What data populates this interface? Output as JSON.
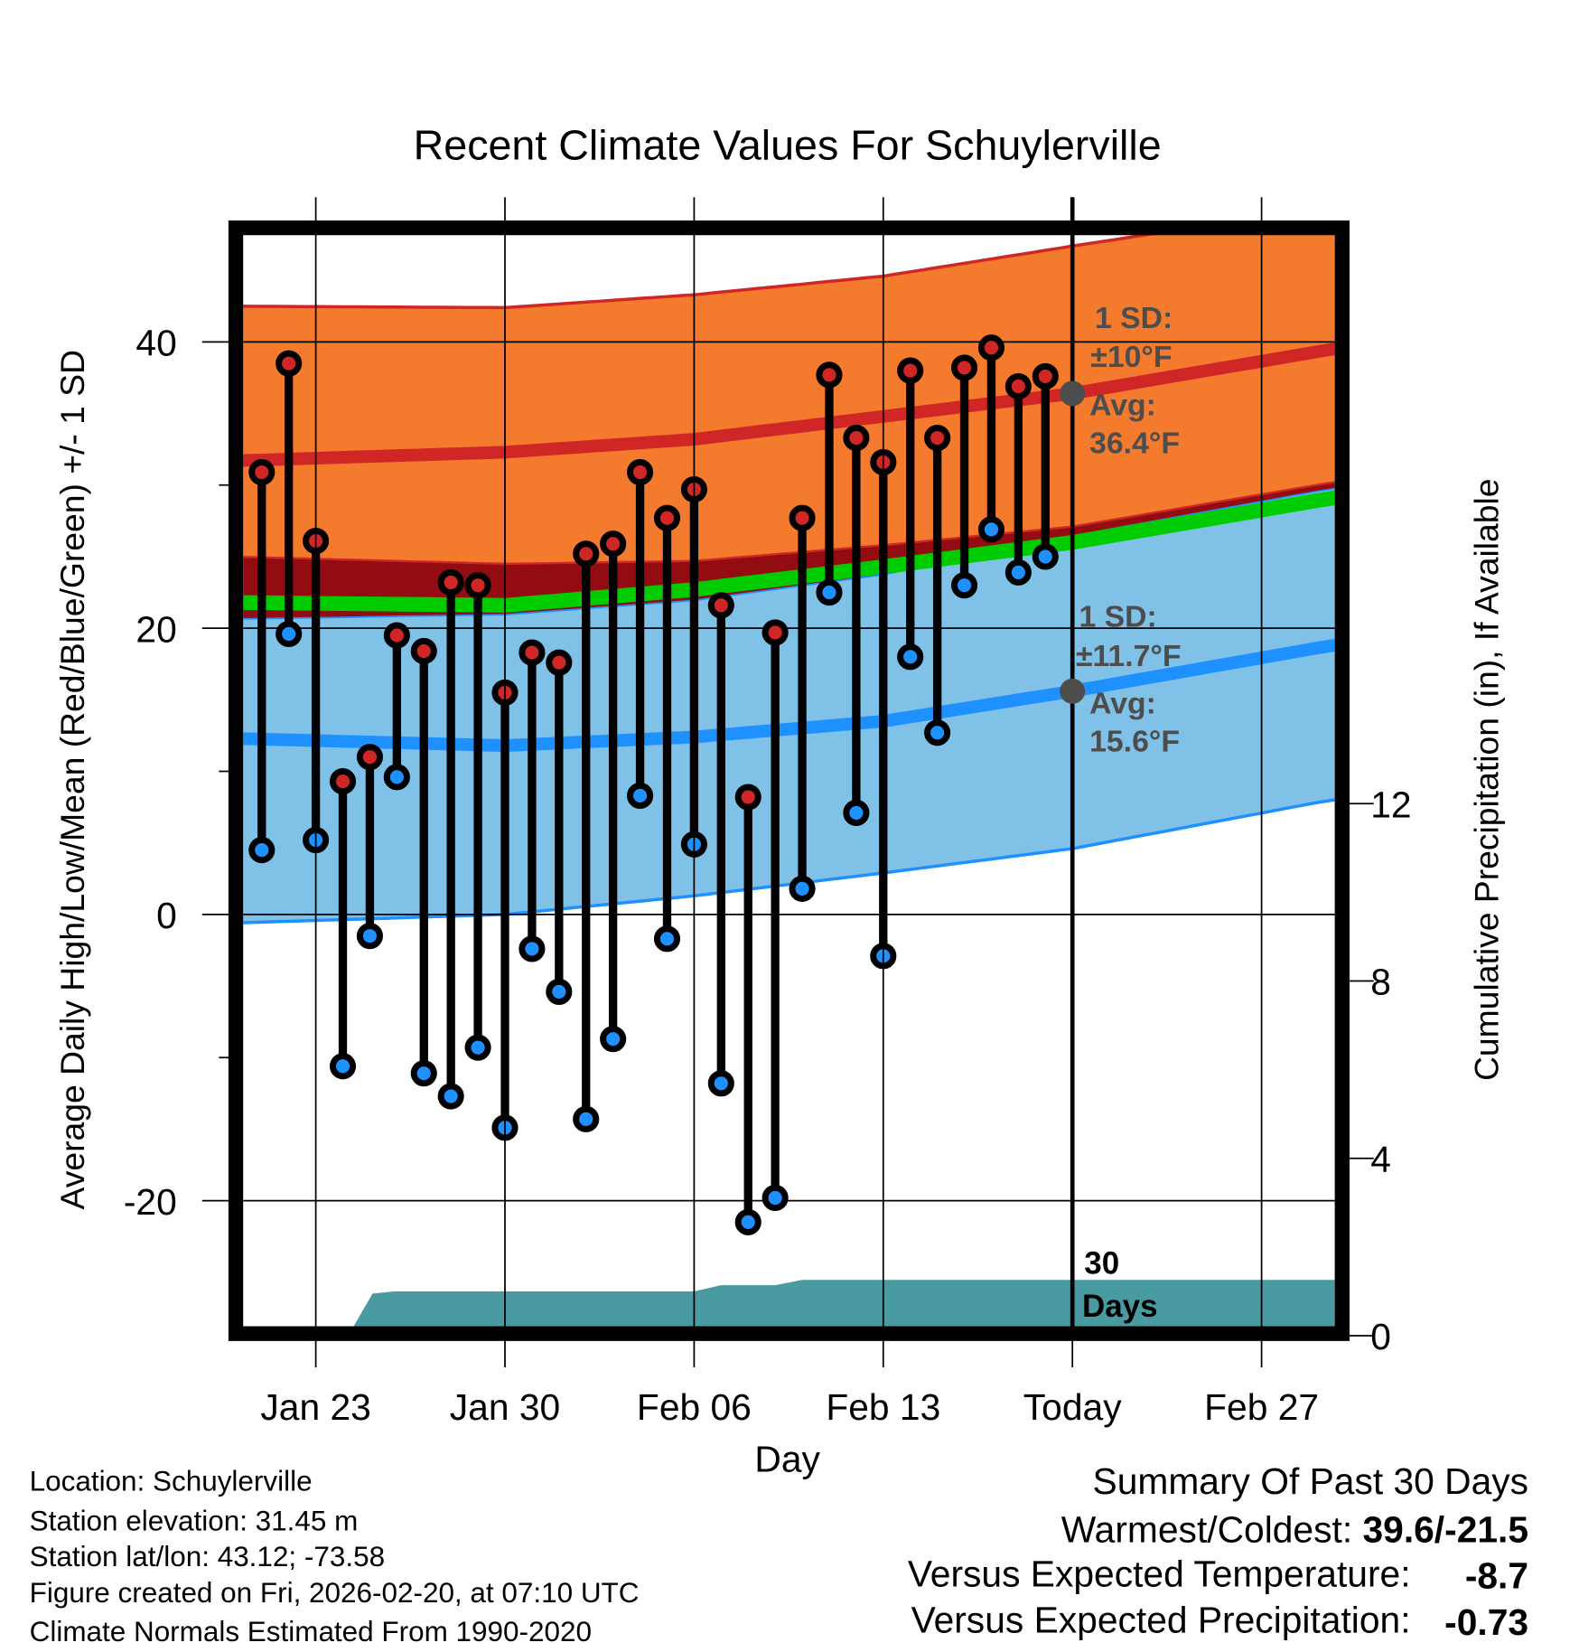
{
  "chart_data": {
    "type": "line",
    "title": "Recent Climate Values For Schuylerville",
    "xlabel": "Day",
    "ylabel": "Average Daily High/Low/Mean (Red/Blue/Green) +/- 1 SD",
    "y2label": "Cumulative Precipitation (in), If Available",
    "ylim": [
      -28.8,
      47.5
    ],
    "y2lim": [
      0,
      24
    ],
    "x_origin": "Jan 20",
    "x_ticks": [
      {
        "day": 3,
        "label": "Jan 23"
      },
      {
        "day": 10,
        "label": "Jan 30"
      },
      {
        "day": 17,
        "label": "Feb 06"
      },
      {
        "day": 24,
        "label": "Feb 13"
      },
      {
        "day": 31,
        "label": "Today"
      },
      {
        "day": 38,
        "label": "Feb 27"
      }
    ],
    "y_ticks": [
      {
        "v": 40,
        "label": "40"
      },
      {
        "v": 20,
        "label": "20"
      },
      {
        "v": 0,
        "label": "0"
      },
      {
        "v": -20,
        "label": "-20"
      }
    ],
    "y_minor_ticks": [
      30,
      10,
      -10
    ],
    "y2_ticks": [
      {
        "v": 0,
        "label": "0"
      },
      {
        "v": 4,
        "label": "4"
      },
      {
        "v": 8,
        "label": "8"
      },
      {
        "v": 12,
        "label": "12"
      }
    ],
    "today_day": 31,
    "observed": {
      "days": [
        1,
        2,
        3,
        4,
        5,
        6,
        7,
        8,
        9,
        10,
        11,
        12,
        13,
        14,
        15,
        16,
        17,
        18,
        19,
        20,
        21,
        22,
        23,
        24,
        25,
        26,
        27,
        28,
        29,
        30
      ],
      "highs": [
        30.9,
        38.5,
        26.1,
        9.3,
        11.0,
        19.5,
        18.4,
        23.2,
        23.0,
        15.5,
        18.3,
        17.6,
        25.2,
        25.9,
        30.9,
        27.7,
        29.7,
        21.6,
        8.2,
        19.7,
        27.7,
        37.7,
        33.3,
        31.6,
        38.0,
        33.3,
        38.2,
        39.6,
        36.9,
        37.6
      ],
      "lows": [
        4.5,
        19.6,
        5.2,
        -10.6,
        -1.5,
        9.6,
        -11.1,
        -12.7,
        -9.3,
        -14.9,
        -2.4,
        -5.4,
        -14.3,
        -8.7,
        8.3,
        -1.7,
        4.9,
        -11.8,
        -21.5,
        -19.8,
        1.8,
        22.5,
        7.1,
        -2.9,
        18.0,
        12.7,
        23.0,
        26.9,
        23.9,
        25.0
      ]
    },
    "normals": {
      "days": [
        0,
        10,
        17,
        24,
        31,
        40,
        41
      ],
      "high_avg": [
        31.7,
        32.3,
        33.2,
        34.8,
        36.4,
        39.3,
        39.6
      ],
      "high_upper": [
        42.5,
        42.4,
        43.3,
        44.6,
        46.7,
        49.3,
        49.6
      ],
      "high_lower": [
        25.0,
        24.5,
        24.7,
        25.8,
        27.1,
        30.0,
        30.3
      ],
      "mean": [
        21.8,
        21.6,
        22.7,
        24.3,
        26.0,
        28.9,
        29.2
      ],
      "low_avg": [
        12.3,
        11.8,
        12.4,
        13.5,
        15.6,
        18.6,
        18.9
      ],
      "low_upper": [
        20.7,
        21.0,
        22.0,
        23.8,
        26.5,
        29.6,
        29.9
      ],
      "low_lower": [
        -0.6,
        0.0,
        1.3,
        2.9,
        4.6,
        7.8,
        8.1
      ]
    },
    "precip_cumulative": {
      "days": [
        0,
        4.2,
        5.1,
        5.9,
        17,
        18,
        20,
        21,
        41
      ],
      "values": [
        0,
        0,
        0.95,
        1.0,
        1.0,
        1.14,
        1.14,
        1.26,
        1.26
      ]
    },
    "annotations": {
      "high_sd_label": "1 SD:",
      "high_sd_value": "±10°F",
      "high_avg_label": "Avg:",
      "high_avg_value": "36.4°F",
      "low_sd_label": "1 SD:",
      "low_sd_value": "±11.7°F",
      "low_avg_label": "Avg:",
      "low_avg_value": "15.6°F",
      "days_count": "30",
      "days_word": "Days"
    },
    "colors": {
      "high_band": "#f47a2e",
      "high_line": "#d02626",
      "overlap": "#920c12",
      "mean_line": "#00cc00",
      "low_band": "#80c1e8",
      "low_line": "#1e90ff",
      "precip": "#4a9aa2",
      "high_dot": "#d02626",
      "low_dot": "#1e90ff",
      "annotation": "#4d4d4d"
    }
  },
  "info": {
    "location": "Location: Schuylerville",
    "elevation": "Station elevation: 31.45 m",
    "latlon": "Station lat/lon: 43.12; -73.58",
    "created": "Figure created on Fri, 2026-02-20, at 07:10 UTC",
    "normals": "Climate Normals Estimated From 1990-2020"
  },
  "summary": {
    "title": "Summary Of Past 30 Days",
    "warm_cold_label": "Warmest/Coldest: ",
    "warm_cold_value": "39.6/-21.5",
    "temp_label": "Versus Expected Temperature:",
    "temp_value": "-8.7",
    "temp_color": "#1e90ff",
    "precip_label": "Versus Expected Precipitation:",
    "precip_value": "-0.73",
    "precip_color": "#a8532a"
  }
}
